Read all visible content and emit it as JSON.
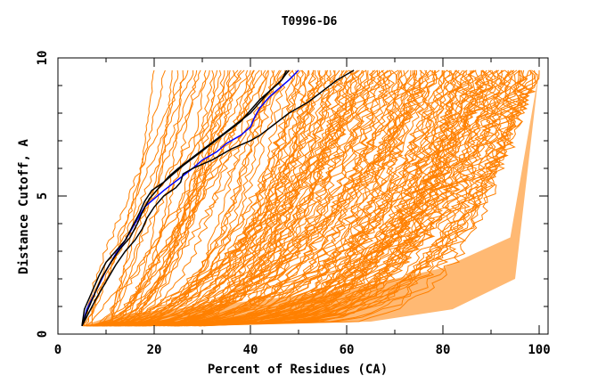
{
  "chart_data": {
    "type": "line",
    "title": "T0996-D6",
    "xlabel": "Percent of Residues (CA)",
    "ylabel": "Distance Cutoff, A",
    "xlim": [
      0,
      100
    ],
    "ylim": [
      0,
      10
    ],
    "x_ticks_major": [
      0,
      20,
      40,
      60,
      80,
      100
    ],
    "x_ticks_minor": [
      10,
      30,
      50,
      70,
      90
    ],
    "y_ticks_major": [
      0,
      5,
      10
    ],
    "y_ticks_minor": [
      1,
      2,
      3,
      4,
      6,
      7,
      8,
      9
    ],
    "grid": false,
    "legend": "none",
    "colors": {
      "background_models": "#ff8000",
      "highlight_black": "#000000",
      "highlight_blue": "#0000ff",
      "frame": "#000000"
    },
    "background_ensemble": {
      "description": "Many orange GDT curves of other models, spanning from ~5% to 100% of residues",
      "count": 160,
      "y_start": 0.3,
      "y_end": 9.55,
      "x_start_range": [
        5,
        30
      ],
      "x_end_range": [
        20,
        100
      ]
    },
    "series": [
      {
        "name": "highlight-blue",
        "color": "#0000ff",
        "points": [
          [
            5,
            0.3
          ],
          [
            6,
            0.9
          ],
          [
            8,
            1.6
          ],
          [
            10,
            2.3
          ],
          [
            12,
            2.9
          ],
          [
            14,
            3.4
          ],
          [
            16,
            4.0
          ],
          [
            17,
            4.3
          ],
          [
            18,
            4.6
          ],
          [
            20,
            4.9
          ],
          [
            22,
            5.2
          ],
          [
            25,
            5.6
          ],
          [
            28,
            6.0
          ],
          [
            30,
            6.3
          ],
          [
            33,
            6.6
          ],
          [
            35,
            6.9
          ],
          [
            38,
            7.2
          ],
          [
            40,
            7.5
          ],
          [
            41,
            7.9
          ],
          [
            42,
            8.2
          ],
          [
            44,
            8.6
          ],
          [
            46,
            8.9
          ],
          [
            48,
            9.2
          ],
          [
            50,
            9.55
          ]
        ]
      },
      {
        "name": "highlight-black-1",
        "color": "#000000",
        "points": [
          [
            5,
            0.3
          ],
          [
            5.5,
            0.9
          ],
          [
            7,
            1.5
          ],
          [
            8.5,
            2.1
          ],
          [
            10,
            2.6
          ],
          [
            12,
            3.0
          ],
          [
            14,
            3.4
          ],
          [
            15.5,
            3.9
          ],
          [
            17,
            4.4
          ],
          [
            18,
            4.8
          ],
          [
            19.5,
            5.2
          ],
          [
            22,
            5.5
          ],
          [
            24,
            5.8
          ],
          [
            26,
            6.1
          ],
          [
            29,
            6.5
          ],
          [
            32,
            6.9
          ],
          [
            35,
            7.3
          ],
          [
            38,
            7.7
          ],
          [
            40,
            8.1
          ],
          [
            42,
            8.5
          ],
          [
            44,
            8.8
          ],
          [
            46,
            9.1
          ],
          [
            48,
            9.55
          ]
        ]
      },
      {
        "name": "highlight-black-2",
        "color": "#000000",
        "points": [
          [
            5,
            0.3
          ],
          [
            6,
            0.8
          ],
          [
            7.5,
            1.4
          ],
          [
            9,
            2.0
          ],
          [
            11,
            2.6
          ],
          [
            13,
            3.1
          ],
          [
            15,
            3.5
          ],
          [
            16.5,
            4.0
          ],
          [
            17.5,
            4.4
          ],
          [
            19,
            4.9
          ],
          [
            21,
            5.3
          ],
          [
            23,
            5.7
          ],
          [
            25,
            6.0
          ],
          [
            28,
            6.4
          ],
          [
            31,
            6.8
          ],
          [
            34,
            7.2
          ],
          [
            37,
            7.6
          ],
          [
            40,
            8.0
          ],
          [
            42,
            8.4
          ],
          [
            44,
            8.8
          ],
          [
            46.5,
            9.2
          ],
          [
            47.5,
            9.55
          ]
        ]
      },
      {
        "name": "highlight-black-3",
        "color": "#000000",
        "points": [
          [
            5,
            0.3
          ],
          [
            6.5,
            0.8
          ],
          [
            8,
            1.3
          ],
          [
            10,
            1.9
          ],
          [
            12,
            2.5
          ],
          [
            14,
            3.0
          ],
          [
            16,
            3.4
          ],
          [
            17.5,
            3.8
          ],
          [
            18.5,
            4.2
          ],
          [
            20,
            4.6
          ],
          [
            22,
            5.0
          ],
          [
            24.5,
            5.3
          ],
          [
            25.5,
            5.5
          ],
          [
            26,
            5.8
          ],
          [
            28,
            6.0
          ],
          [
            32,
            6.3
          ],
          [
            36,
            6.7
          ],
          [
            40,
            7.0
          ],
          [
            42,
            7.2
          ],
          [
            45,
            7.6
          ],
          [
            48,
            8.0
          ],
          [
            52,
            8.4
          ],
          [
            55,
            8.8
          ],
          [
            58,
            9.2
          ],
          [
            61.5,
            9.55
          ]
        ]
      }
    ]
  }
}
